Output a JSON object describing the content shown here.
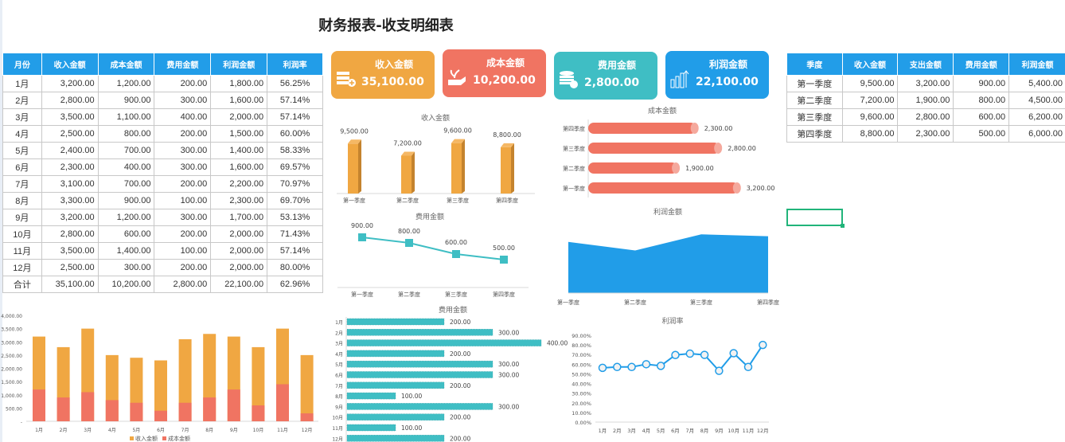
{
  "title": "财务报表-收支明细表",
  "monthly_table": {
    "headers": [
      "月份",
      "收入金额",
      "成本金额",
      "费用金额",
      "利润金额",
      "利润率"
    ],
    "rows": [
      [
        "1月",
        "3,200.00",
        "1,200.00",
        "200.00",
        "1,800.00",
        "56.25%"
      ],
      [
        "2月",
        "2,800.00",
        "900.00",
        "300.00",
        "1,600.00",
        "57.14%"
      ],
      [
        "3月",
        "3,500.00",
        "1,100.00",
        "400.00",
        "2,000.00",
        "57.14%"
      ],
      [
        "4月",
        "2,500.00",
        "800.00",
        "200.00",
        "1,500.00",
        "60.00%"
      ],
      [
        "5月",
        "2,400.00",
        "700.00",
        "300.00",
        "1,400.00",
        "58.33%"
      ],
      [
        "6月",
        "2,300.00",
        "400.00",
        "300.00",
        "1,600.00",
        "69.57%"
      ],
      [
        "7月",
        "3,100.00",
        "700.00",
        "200.00",
        "2,200.00",
        "70.97%"
      ],
      [
        "8月",
        "3,300.00",
        "900.00",
        "100.00",
        "2,300.00",
        "69.70%"
      ],
      [
        "9月",
        "3,200.00",
        "1,200.00",
        "300.00",
        "1,700.00",
        "53.13%"
      ],
      [
        "10月",
        "2,800.00",
        "600.00",
        "200.00",
        "2,000.00",
        "71.43%"
      ],
      [
        "11月",
        "3,500.00",
        "1,400.00",
        "100.00",
        "2,000.00",
        "57.14%"
      ],
      [
        "12月",
        "2,500.00",
        "300.00",
        "200.00",
        "2,000.00",
        "80.00%"
      ],
      [
        "合计",
        "35,100.00",
        "10,200.00",
        "2,800.00",
        "22,100.00",
        "62.96%"
      ]
    ]
  },
  "quarter_table": {
    "headers": [
      "季度",
      "收入金额",
      "支出金额",
      "费用金额",
      "利润金额"
    ],
    "rows": [
      [
        "第一季度",
        "9,500.00",
        "3,200.00",
        "900.00",
        "5,400.00"
      ],
      [
        "第二季度",
        "7,200.00",
        "1,900.00",
        "800.00",
        "4,500.00"
      ],
      [
        "第三季度",
        "9,600.00",
        "2,800.00",
        "600.00",
        "6,200.00"
      ],
      [
        "第四季度",
        "8,800.00",
        "2,300.00",
        "500.00",
        "6,000.00"
      ]
    ]
  },
  "cards": [
    {
      "label": "收入金额",
      "value": "35,100.00",
      "color": "#F0A742",
      "icon": "coins-plus-icon"
    },
    {
      "label": "成本金额",
      "value": "10,200.00",
      "color": "#F07462",
      "icon": "hand-plant-icon"
    },
    {
      "label": "费用金额",
      "value": "2,800.00",
      "color": "#3FBEC4",
      "icon": "coin-stack-icon"
    },
    {
      "label": "利润金额",
      "value": "22,100.00",
      "color": "#219DE8",
      "icon": "bar-growth-icon"
    }
  ],
  "chart_data": [
    {
      "id": "revenue_q",
      "type": "bar",
      "title": "收入金额",
      "categories": [
        "第一季度",
        "第二季度",
        "第三季度",
        "第四季度"
      ],
      "values": [
        9500,
        7200,
        9600,
        8800
      ],
      "labels": [
        "9,500.00",
        "7,200.00",
        "9,600.00",
        "8,800.00"
      ],
      "color": "#F0A742"
    },
    {
      "id": "cost_q",
      "type": "bar",
      "orientation": "horizontal",
      "title": "成本金额",
      "categories": [
        "第四季度",
        "第三季度",
        "第二季度",
        "第一季度"
      ],
      "values": [
        2300,
        2800,
        1900,
        3200
      ],
      "labels": [
        "2,300.00",
        "2,800.00",
        "1,900.00",
        "3,200.00"
      ],
      "color": "#F07462"
    },
    {
      "id": "expense_q",
      "type": "line",
      "title": "费用金额",
      "categories": [
        "第一季度",
        "第二季度",
        "第三季度",
        "第四季度"
      ],
      "values": [
        900,
        800,
        600,
        500
      ],
      "labels": [
        "900.00",
        "800.00",
        "600.00",
        "500.00"
      ],
      "color": "#3FBEC4"
    },
    {
      "id": "profit_q",
      "type": "area",
      "title": "利润金额",
      "categories": [
        "第一季度",
        "第二季度",
        "第三季度",
        "第四季度"
      ],
      "values": [
        5400,
        4500,
        6200,
        6000
      ],
      "color": "#219DE8"
    },
    {
      "id": "rev_cost_m",
      "type": "bar",
      "categories": [
        "1月",
        "2月",
        "3月",
        "4月",
        "5月",
        "6月",
        "7月",
        "8月",
        "9月",
        "10月",
        "11月",
        "12月"
      ],
      "series": [
        {
          "name": "收入金额",
          "values": [
            3200,
            2800,
            3500,
            2500,
            2400,
            2300,
            3100,
            3300,
            3200,
            2800,
            3500,
            2500
          ],
          "color": "#F0A742"
        },
        {
          "name": "成本金额",
          "values": [
            1200,
            900,
            1100,
            800,
            700,
            400,
            700,
            900,
            1200,
            600,
            1400,
            300
          ],
          "color": "#F07462"
        }
      ],
      "yticks": [
        "-",
        "500.00",
        "1,000.00",
        "1,500.00",
        "2,000.00",
        "2,500.00",
        "3,000.00",
        "3,500.00",
        "4,000.00"
      ],
      "ylim": [
        0,
        4000
      ],
      "legend": "bottom"
    },
    {
      "id": "expense_m",
      "type": "bar",
      "orientation": "horizontal",
      "title": "费用金额",
      "categories": [
        "1月",
        "2月",
        "3月",
        "4月",
        "5月",
        "6月",
        "7月",
        "8月",
        "9月",
        "10月",
        "11月",
        "12月"
      ],
      "values": [
        200,
        300,
        400,
        200,
        300,
        300,
        200,
        100,
        300,
        200,
        100,
        200
      ],
      "labels": [
        "200.00",
        "300.00",
        "400.00",
        "200.00",
        "300.00",
        "300.00",
        "200.00",
        "100.00",
        "300.00",
        "200.00",
        "100.00",
        "200.00"
      ],
      "color": "#3FBEC4"
    },
    {
      "id": "profit_rate_m",
      "type": "line",
      "title": "利润率",
      "categories": [
        "1月",
        "2月",
        "3月",
        "4月",
        "5月",
        "6月",
        "7月",
        "8月",
        "9月",
        "10月",
        "11月",
        "12月"
      ],
      "values": [
        56.25,
        57.14,
        57.14,
        60,
        58.33,
        69.57,
        70.97,
        69.7,
        53.13,
        71.43,
        57.14,
        80
      ],
      "yticks": [
        "0.00%",
        "10.00%",
        "20.00%",
        "30.00%",
        "40.00%",
        "50.00%",
        "60.00%",
        "70.00%",
        "80.00%",
        "90.00%"
      ],
      "ylim": [
        0,
        90
      ],
      "color": "#219DE8"
    }
  ]
}
